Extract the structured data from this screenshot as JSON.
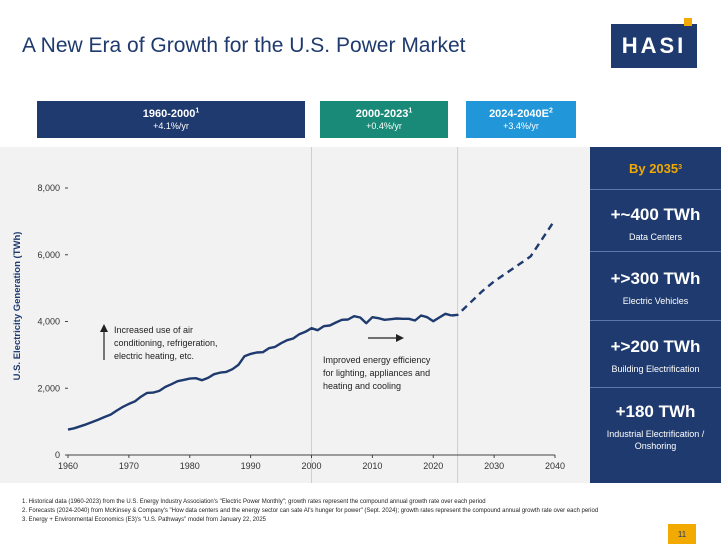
{
  "title": "A New Era of Growth for the U.S. Power Market",
  "logo": "HASI",
  "periods": [
    {
      "label": "1960-2000",
      "sup": "1",
      "rate": "+4.1%/yr",
      "color": "#1e3a6e"
    },
    {
      "label": "2000-2023",
      "sup": "1",
      "rate": "+0.4%/yr",
      "color": "#1a8a78"
    },
    {
      "label": "2024-2040E",
      "sup": "2",
      "rate": "+3.4%/yr",
      "color": "#2196d8"
    }
  ],
  "sidebar": {
    "heading": "By 2035",
    "heading_sup": "3",
    "stats": [
      {
        "value": "+~400 TWh",
        "label": "Data Centers"
      },
      {
        "value": "+>300 TWh",
        "label": "Electric Vehicles"
      },
      {
        "value": "+>200 TWh",
        "label": "Building Electrification"
      },
      {
        "value": "+180 TWh",
        "label": "Industrial Electrification / Onshoring"
      }
    ]
  },
  "annotations": {
    "left": [
      "Increased use of air",
      "conditioning, refrigeration,",
      "electric heating, etc."
    ],
    "right": [
      "Improved energy efficiency",
      "for lighting, appliances and",
      "heating and cooling"
    ]
  },
  "chart_data": {
    "type": "line",
    "ylabel": "U.S. Electricity Generation (TWh)",
    "xlabel": "",
    "xlim": [
      1960,
      2040
    ],
    "ylim": [
      0,
      8000
    ],
    "xticks": [
      1960,
      1970,
      1980,
      1990,
      2000,
      2010,
      2020,
      2030,
      2040
    ],
    "yticks": [
      0,
      2000,
      4000,
      6000,
      8000
    ],
    "ytick_labels": [
      "0",
      "2,000",
      "4,000",
      "6,000",
      "8,000"
    ],
    "line_color": "#1e3a6e",
    "vlines": [
      2000,
      2024
    ],
    "series": [
      {
        "style": "solid",
        "x": [
          1960,
          1961,
          1962,
          1963,
          1964,
          1965,
          1966,
          1967,
          1968,
          1969,
          1970,
          1971,
          1972,
          1973,
          1974,
          1975,
          1976,
          1977,
          1978,
          1979,
          1980,
          1981,
          1982,
          1983,
          1984,
          1985,
          1986,
          1987,
          1988,
          1989,
          1990,
          1991,
          1992,
          1993,
          1994,
          1995,
          1996,
          1997,
          1998,
          1999,
          2000,
          2001,
          2002,
          2003,
          2004,
          2005,
          2006,
          2007,
          2008,
          2009,
          2010,
          2011,
          2012,
          2013,
          2014,
          2015,
          2016,
          2017,
          2018,
          2019,
          2020,
          2021,
          2022,
          2023
        ],
        "y": [
          760,
          800,
          860,
          920,
          990,
          1060,
          1140,
          1210,
          1330,
          1440,
          1530,
          1610,
          1750,
          1860,
          1870,
          1920,
          2040,
          2120,
          2210,
          2250,
          2290,
          2300,
          2240,
          2310,
          2420,
          2470,
          2490,
          2570,
          2700,
          2960,
          3030,
          3070,
          3080,
          3200,
          3240,
          3350,
          3440,
          3490,
          3620,
          3690,
          3800,
          3740,
          3860,
          3880,
          3970,
          4050,
          4060,
          4160,
          4120,
          3950,
          4130,
          4100,
          4050,
          4070,
          4090,
          4080,
          4080,
          4030,
          4180,
          4130,
          4010,
          4120,
          4230,
          4180
        ]
      },
      {
        "style": "dashed",
        "x": [
          2023,
          2024,
          2026,
          2028,
          2030,
          2032,
          2034,
          2036,
          2038,
          2040
        ],
        "y": [
          4180,
          4200,
          4550,
          4900,
          5200,
          5450,
          5700,
          5950,
          6500,
          7050
        ]
      }
    ]
  },
  "footnotes": [
    "1.  Historical data (1960-2023) from the U.S. Energy Industry Association's \"Electric Power Monthly\"; growth rates represent the compound annual growth rate over each period",
    "2.  Forecasts (2024-2040) from McKinsey & Company's \"How data centers and the energy sector can sate AI's hunger for power\" (Sept. 2024); growth rates represent the compound annual growth rate over each period",
    "3.  Energy + Environmental Economics (E3)'s \"U.S. Pathways\" model from January 22, 2025"
  ],
  "page_number": "11"
}
